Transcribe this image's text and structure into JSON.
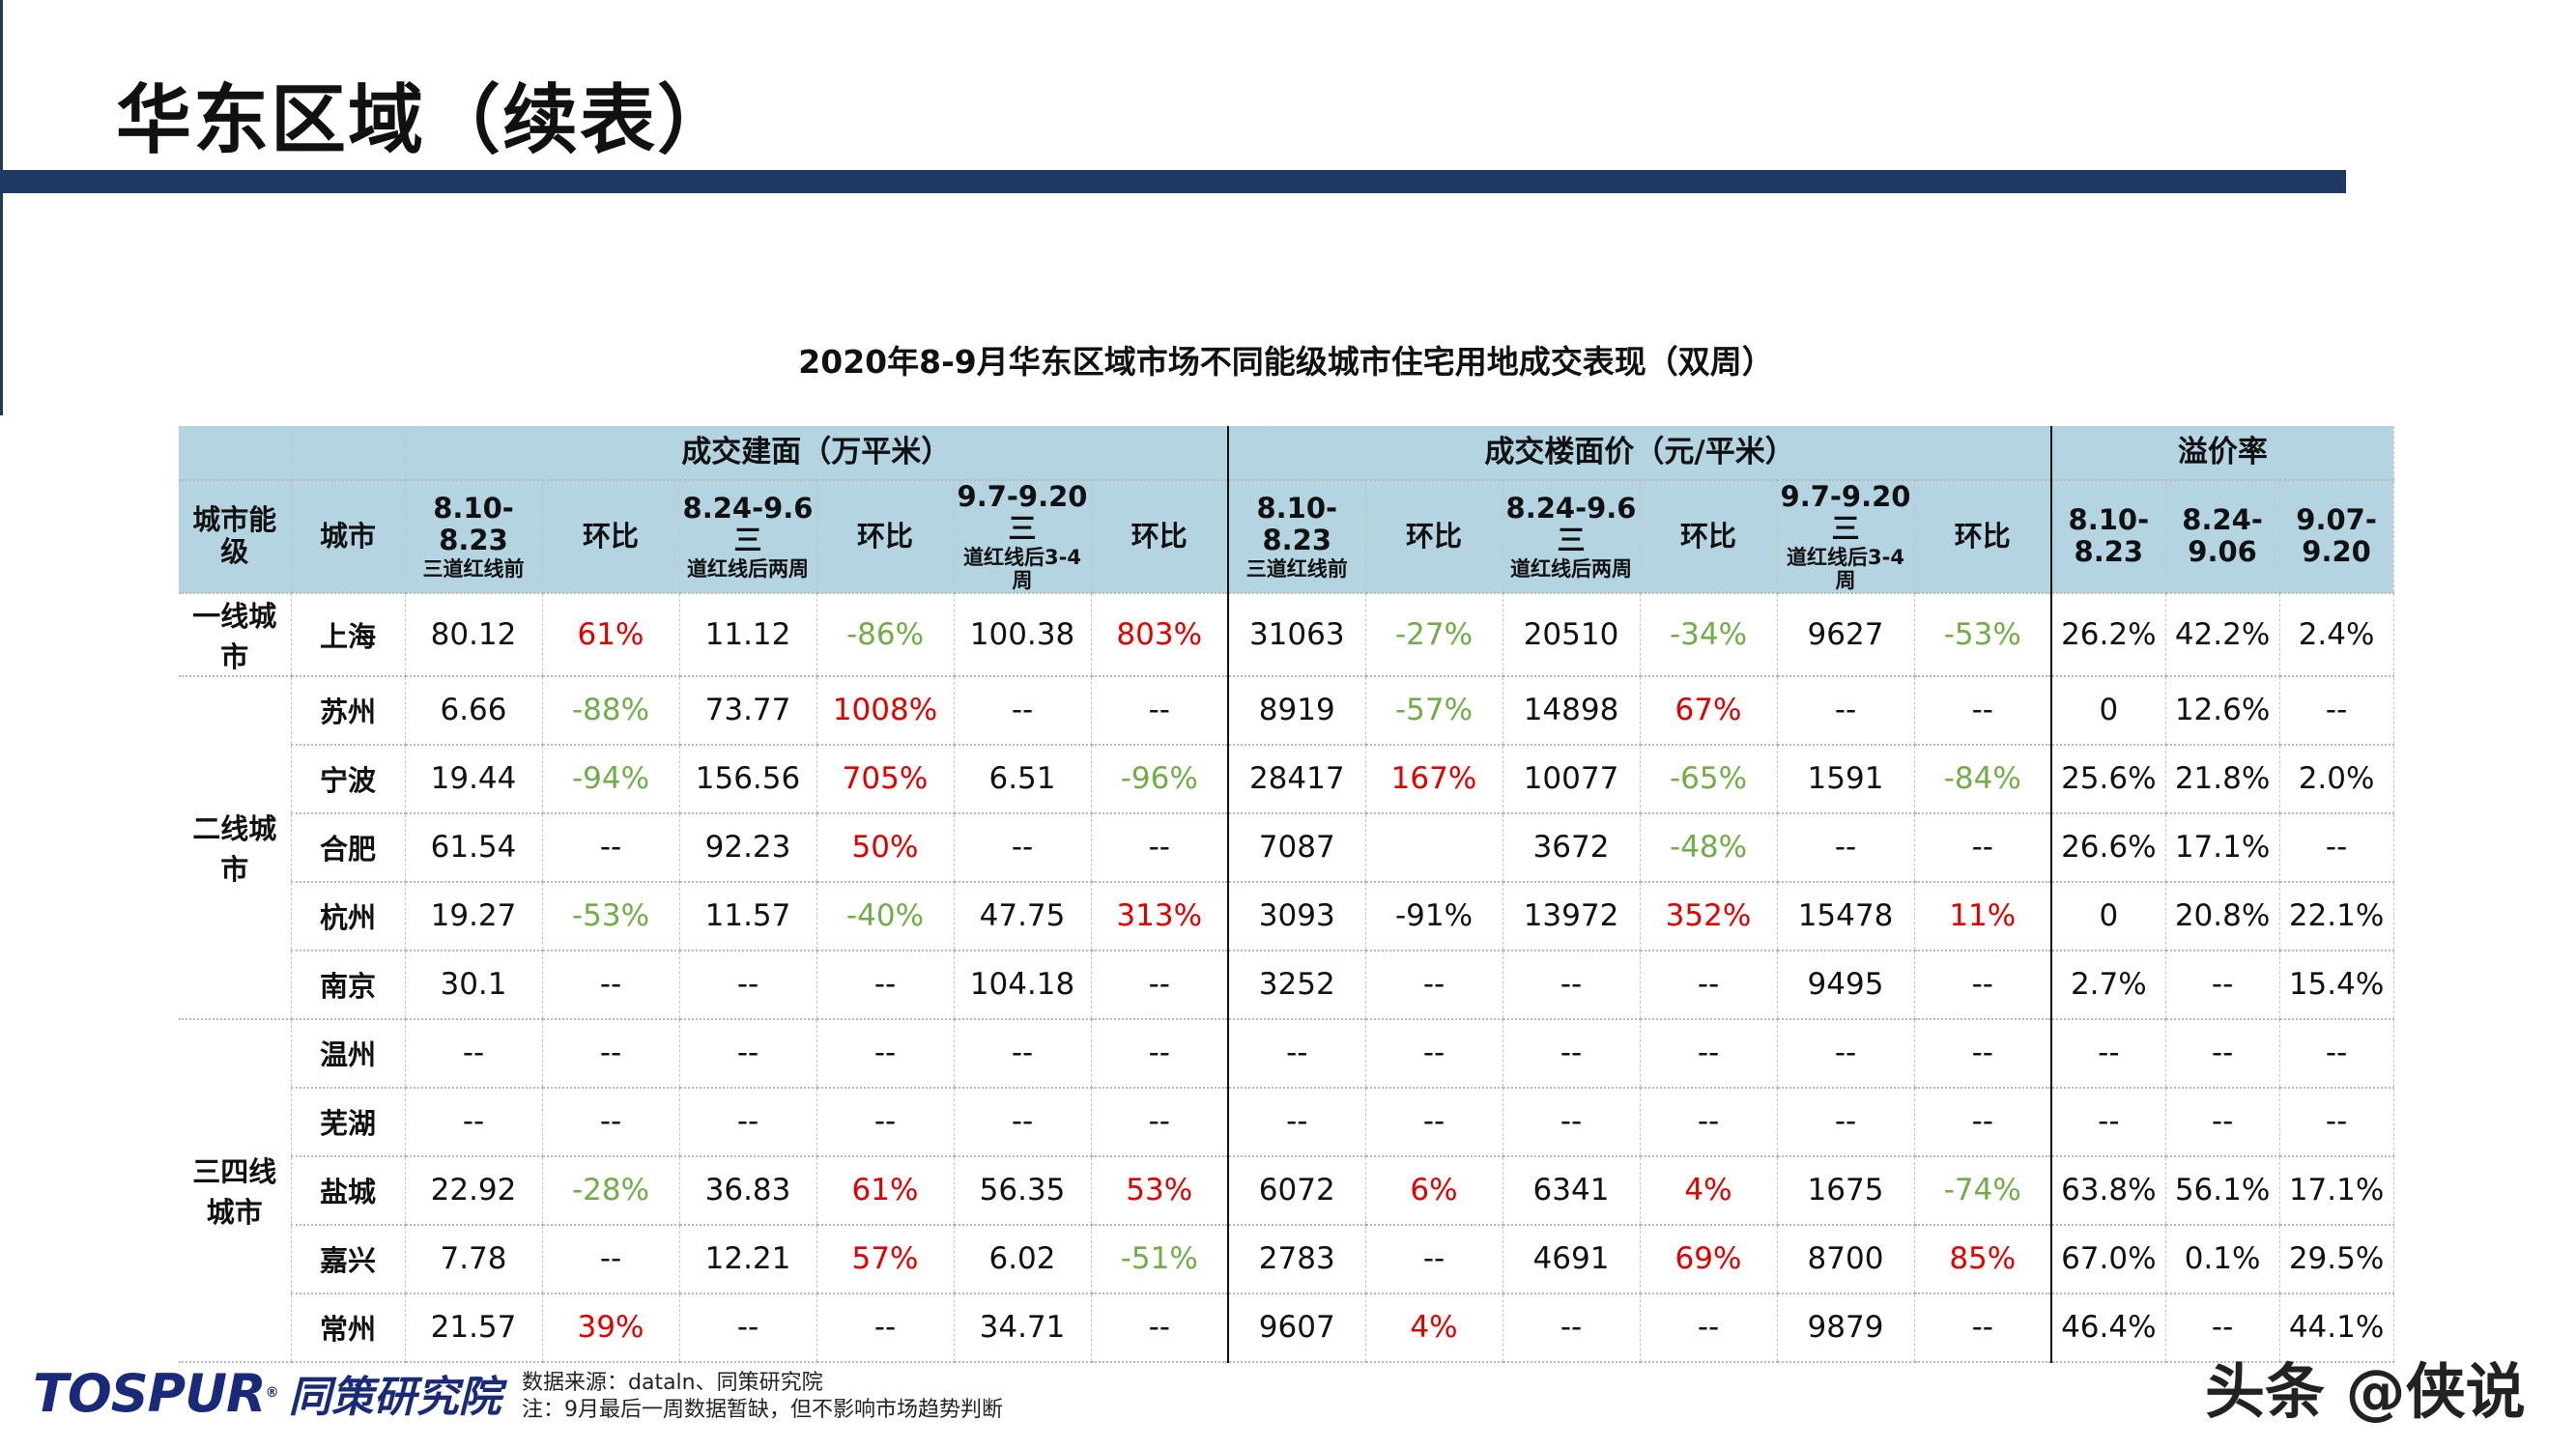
{
  "page": {
    "title": "华东区域（续表）",
    "accent_color": "#1f3864"
  },
  "table": {
    "title": "2020年8-9月华东区域市场不同能级城市住宅用地成交表现（双周）",
    "header_bg": "#b4d4e1",
    "group_headers": [
      "成交建面（万平米）",
      "成交楼面价（元/平米）",
      "溢价率"
    ],
    "col_headers": [
      {
        "main": "城市能级",
        "sub": ""
      },
      {
        "main": "城市",
        "sub": ""
      },
      {
        "main": "8.10-8.23",
        "sub": "三道红线前"
      },
      {
        "main": "环比",
        "sub": ""
      },
      {
        "main": "8.24-9.6三",
        "sub": "道红线后两周"
      },
      {
        "main": "环比",
        "sub": ""
      },
      {
        "main": "9.7-9.20三",
        "sub": "道红线后3-4周"
      },
      {
        "main": "环比",
        "sub": ""
      },
      {
        "main": "8.10-8.23",
        "sub": "三道红线前"
      },
      {
        "main": "环比",
        "sub": ""
      },
      {
        "main": "8.24-9.6三",
        "sub": "道红线后两周"
      },
      {
        "main": "环比",
        "sub": ""
      },
      {
        "main": "9.7-9.20三",
        "sub": "道红线后3-4周"
      },
      {
        "main": "环比",
        "sub": ""
      },
      {
        "main": "8.10-8.23",
        "sub": ""
      },
      {
        "main": "8.24-9.06",
        "sub": ""
      },
      {
        "main": "9.07-9.20",
        "sub": ""
      }
    ],
    "colors": {
      "red": "#e00000",
      "green": "#70ad47",
      "black": "#111111"
    },
    "levels": [
      {
        "label": "一线城市",
        "rows": 1
      },
      {
        "label": "二线城市",
        "rows": 5
      },
      {
        "label": "三四线城市",
        "rows": 5
      }
    ],
    "rows": [
      {
        "city": "上海",
        "cells": [
          [
            "80.12",
            "black"
          ],
          [
            "61%",
            "red"
          ],
          [
            "11.12",
            "black"
          ],
          [
            "-86%",
            "green"
          ],
          [
            "100.38",
            "black"
          ],
          [
            "803%",
            "red"
          ],
          [
            "31063",
            "black"
          ],
          [
            "-27%",
            "green"
          ],
          [
            "20510",
            "black"
          ],
          [
            "-34%",
            "green"
          ],
          [
            "9627",
            "black"
          ],
          [
            "-53%",
            "green"
          ],
          [
            "26.2%",
            "black"
          ],
          [
            "42.2%",
            "black"
          ],
          [
            "2.4%",
            "black"
          ]
        ]
      },
      {
        "city": "苏州",
        "cells": [
          [
            "6.66",
            "black"
          ],
          [
            "-88%",
            "green"
          ],
          [
            "73.77",
            "black"
          ],
          [
            "1008%",
            "red"
          ],
          [
            "--",
            "black"
          ],
          [
            "--",
            "black"
          ],
          [
            "8919",
            "black"
          ],
          [
            "-57%",
            "green"
          ],
          [
            "14898",
            "black"
          ],
          [
            "67%",
            "red"
          ],
          [
            "--",
            "black"
          ],
          [
            "--",
            "black"
          ],
          [
            "0",
            "black"
          ],
          [
            "12.6%",
            "black"
          ],
          [
            "--",
            "black"
          ]
        ]
      },
      {
        "city": "宁波",
        "cells": [
          [
            "19.44",
            "black"
          ],
          [
            "-94%",
            "green"
          ],
          [
            "156.56",
            "black"
          ],
          [
            "705%",
            "red"
          ],
          [
            "6.51",
            "black"
          ],
          [
            "-96%",
            "green"
          ],
          [
            "28417",
            "black"
          ],
          [
            "167%",
            "red"
          ],
          [
            "10077",
            "black"
          ],
          [
            "-65%",
            "green"
          ],
          [
            "1591",
            "black"
          ],
          [
            "-84%",
            "green"
          ],
          [
            "25.6%",
            "black"
          ],
          [
            "21.8%",
            "black"
          ],
          [
            "2.0%",
            "black"
          ]
        ]
      },
      {
        "city": "合肥",
        "cells": [
          [
            "61.54",
            "black"
          ],
          [
            "--",
            "black"
          ],
          [
            "92.23",
            "black"
          ],
          [
            "50%",
            "red"
          ],
          [
            "--",
            "black"
          ],
          [
            "--",
            "black"
          ],
          [
            "7087",
            "black"
          ],
          [
            "",
            "black"
          ],
          [
            "3672",
            "black"
          ],
          [
            "-48%",
            "green"
          ],
          [
            "--",
            "black"
          ],
          [
            "--",
            "black"
          ],
          [
            "26.6%",
            "black"
          ],
          [
            "17.1%",
            "black"
          ],
          [
            "--",
            "black"
          ]
        ]
      },
      {
        "city": "杭州",
        "cells": [
          [
            "19.27",
            "black"
          ],
          [
            "-53%",
            "green"
          ],
          [
            "11.57",
            "black"
          ],
          [
            "-40%",
            "green"
          ],
          [
            "47.75",
            "black"
          ],
          [
            "313%",
            "red"
          ],
          [
            "3093",
            "black"
          ],
          [
            "-91%",
            "black"
          ],
          [
            "13972",
            "black"
          ],
          [
            "352%",
            "red"
          ],
          [
            "15478",
            "black"
          ],
          [
            "11%",
            "red"
          ],
          [
            "0",
            "black"
          ],
          [
            "20.8%",
            "black"
          ],
          [
            "22.1%",
            "black"
          ]
        ]
      },
      {
        "city": "南京",
        "cells": [
          [
            "30.1",
            "black"
          ],
          [
            "--",
            "black"
          ],
          [
            "--",
            "black"
          ],
          [
            "--",
            "black"
          ],
          [
            "104.18",
            "black"
          ],
          [
            "--",
            "black"
          ],
          [
            "3252",
            "black"
          ],
          [
            "--",
            "black"
          ],
          [
            "--",
            "black"
          ],
          [
            "--",
            "black"
          ],
          [
            "9495",
            "black"
          ],
          [
            "--",
            "black"
          ],
          [
            "2.7%",
            "black"
          ],
          [
            "--",
            "black"
          ],
          [
            "15.4%",
            "black"
          ]
        ]
      },
      {
        "city": "温州",
        "cells": [
          [
            "--",
            "black"
          ],
          [
            "--",
            "black"
          ],
          [
            "--",
            "black"
          ],
          [
            "--",
            "black"
          ],
          [
            "--",
            "black"
          ],
          [
            "--",
            "black"
          ],
          [
            "--",
            "black"
          ],
          [
            "--",
            "black"
          ],
          [
            "--",
            "black"
          ],
          [
            "--",
            "black"
          ],
          [
            "--",
            "black"
          ],
          [
            "--",
            "black"
          ],
          [
            "--",
            "black"
          ],
          [
            "--",
            "black"
          ],
          [
            "--",
            "black"
          ]
        ]
      },
      {
        "city": "芜湖",
        "cells": [
          [
            "--",
            "black"
          ],
          [
            "--",
            "black"
          ],
          [
            "--",
            "black"
          ],
          [
            "--",
            "black"
          ],
          [
            "--",
            "black"
          ],
          [
            "--",
            "black"
          ],
          [
            "--",
            "black"
          ],
          [
            "--",
            "black"
          ],
          [
            "--",
            "black"
          ],
          [
            "--",
            "black"
          ],
          [
            "--",
            "black"
          ],
          [
            "--",
            "black"
          ],
          [
            "--",
            "black"
          ],
          [
            "--",
            "black"
          ],
          [
            "--",
            "black"
          ]
        ]
      },
      {
        "city": "盐城",
        "cells": [
          [
            "22.92",
            "black"
          ],
          [
            "-28%",
            "green"
          ],
          [
            "36.83",
            "black"
          ],
          [
            "61%",
            "red"
          ],
          [
            "56.35",
            "black"
          ],
          [
            "53%",
            "red"
          ],
          [
            "6072",
            "black"
          ],
          [
            "6%",
            "red"
          ],
          [
            "6341",
            "black"
          ],
          [
            "4%",
            "red"
          ],
          [
            "1675",
            "black"
          ],
          [
            "-74%",
            "green"
          ],
          [
            "63.8%",
            "black"
          ],
          [
            "56.1%",
            "black"
          ],
          [
            "17.1%",
            "black"
          ]
        ]
      },
      {
        "city": "嘉兴",
        "cells": [
          [
            "7.78",
            "black"
          ],
          [
            "--",
            "black"
          ],
          [
            "12.21",
            "black"
          ],
          [
            "57%",
            "red"
          ],
          [
            "6.02",
            "black"
          ],
          [
            "-51%",
            "green"
          ],
          [
            "2783",
            "black"
          ],
          [
            "--",
            "black"
          ],
          [
            "4691",
            "black"
          ],
          [
            "69%",
            "red"
          ],
          [
            "8700",
            "black"
          ],
          [
            "85%",
            "red"
          ],
          [
            "67.0%",
            "black"
          ],
          [
            "0.1%",
            "black"
          ],
          [
            "29.5%",
            "black"
          ]
        ]
      },
      {
        "city": "常州",
        "cells": [
          [
            "21.57",
            "black"
          ],
          [
            "39%",
            "red"
          ],
          [
            "--",
            "black"
          ],
          [
            "--",
            "black"
          ],
          [
            "34.71",
            "black"
          ],
          [
            "--",
            "black"
          ],
          [
            "9607",
            "black"
          ],
          [
            "4%",
            "red"
          ],
          [
            "--",
            "black"
          ],
          [
            "--",
            "black"
          ],
          [
            "9879",
            "black"
          ],
          [
            "--",
            "black"
          ],
          [
            "46.4%",
            "black"
          ],
          [
            "--",
            "black"
          ],
          [
            "44.1%",
            "black"
          ]
        ]
      }
    ]
  },
  "footer": {
    "logo_en": "TOSPUR",
    "logo_cn": "同策研究院",
    "source": "数据来源：dataln、同策研究院",
    "note": "注：9月最后一周数据暂缺，但不影响市场趋势判断",
    "watermark": "头条 @侠说"
  }
}
